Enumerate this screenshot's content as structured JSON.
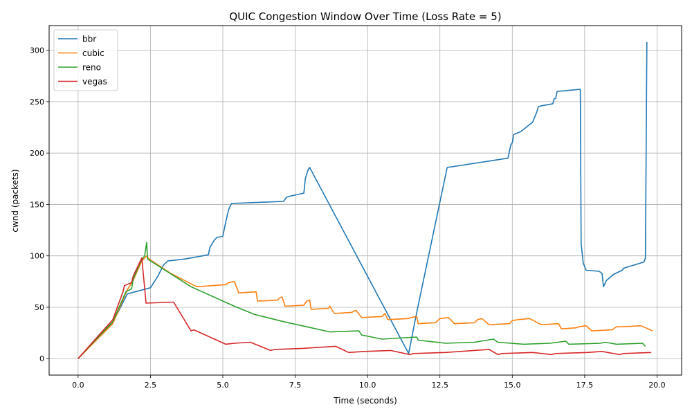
{
  "chart_data": {
    "type": "line",
    "title": "QUIC Congestion Window Over Time (Loss Rate = 5)",
    "xlabel": "Time (seconds)",
    "ylabel": "cwnd (packets)",
    "xlim": [
      -1.0,
      20.85
    ],
    "ylim": [
      -16,
      324
    ],
    "xticks": [
      0.0,
      2.5,
      5.0,
      7.5,
      10.0,
      12.5,
      15.0,
      17.5,
      20.0
    ],
    "xtick_labels": [
      "0.0",
      "2.5",
      "5.0",
      "7.5",
      "10.0",
      "12.5",
      "15.0",
      "17.5",
      "20.0"
    ],
    "yticks": [
      0,
      50,
      100,
      150,
      200,
      250,
      300
    ],
    "ytick_labels": [
      "0",
      "50",
      "100",
      "150",
      "200",
      "250",
      "300"
    ],
    "grid": true,
    "legend": "upper-left",
    "series": [
      {
        "name": "bbr",
        "color": "#1f77b4",
        "points": [
          [
            0,
            0
          ],
          [
            1.2,
            35
          ],
          [
            1.7,
            63
          ],
          [
            2.5,
            69
          ],
          [
            2.75,
            80
          ],
          [
            2.95,
            91
          ],
          [
            3.1,
            95
          ],
          [
            3.7,
            97
          ],
          [
            4.5,
            101
          ],
          [
            4.55,
            108
          ],
          [
            4.7,
            115
          ],
          [
            4.8,
            118
          ],
          [
            5.0,
            119
          ],
          [
            5.1,
            133
          ],
          [
            5.2,
            145
          ],
          [
            5.3,
            151
          ],
          [
            7.1,
            153
          ],
          [
            7.2,
            157
          ],
          [
            7.3,
            158
          ],
          [
            7.8,
            161
          ],
          [
            7.85,
            175
          ],
          [
            7.95,
            184
          ],
          [
            8.0,
            186
          ],
          [
            11.42,
            5
          ],
          [
            11.7,
            45
          ],
          [
            12.75,
            186
          ],
          [
            14.85,
            195
          ],
          [
            14.95,
            208
          ],
          [
            15.0,
            210
          ],
          [
            15.05,
            218
          ],
          [
            15.3,
            221
          ],
          [
            15.7,
            230
          ],
          [
            15.85,
            240
          ],
          [
            15.9,
            245
          ],
          [
            16.0,
            246
          ],
          [
            16.4,
            248
          ],
          [
            16.45,
            253
          ],
          [
            16.5,
            253
          ],
          [
            16.55,
            260
          ],
          [
            17.35,
            262
          ],
          [
            17.38,
            112
          ],
          [
            17.45,
            93
          ],
          [
            17.55,
            86
          ],
          [
            18.0,
            85
          ],
          [
            18.1,
            83
          ],
          [
            18.15,
            70
          ],
          [
            18.25,
            76
          ],
          [
            18.5,
            82
          ],
          [
            18.8,
            86
          ],
          [
            18.85,
            88
          ],
          [
            19.55,
            94
          ],
          [
            19.6,
            98
          ],
          [
            19.65,
            308
          ]
        ]
      },
      {
        "name": "cubic",
        "color": "#ff7f0e",
        "points": [
          [
            0,
            0
          ],
          [
            1.2,
            34
          ],
          [
            1.7,
            67
          ],
          [
            1.9,
            76
          ],
          [
            2.2,
            95
          ],
          [
            2.37,
            100
          ],
          [
            2.45,
            97
          ],
          [
            3.2,
            83
          ],
          [
            4.1,
            70
          ],
          [
            5.1,
            72
          ],
          [
            5.2,
            74
          ],
          [
            5.4,
            75
          ],
          [
            5.55,
            64
          ],
          [
            6.15,
            65
          ],
          [
            6.2,
            56
          ],
          [
            6.9,
            57
          ],
          [
            6.95,
            59
          ],
          [
            7.05,
            60
          ],
          [
            7.15,
            51
          ],
          [
            7.8,
            52
          ],
          [
            7.9,
            56
          ],
          [
            8.0,
            57
          ],
          [
            8.05,
            48
          ],
          [
            8.65,
            49
          ],
          [
            8.7,
            51
          ],
          [
            8.85,
            44
          ],
          [
            9.45,
            45
          ],
          [
            9.6,
            47
          ],
          [
            9.8,
            40
          ],
          [
            10.5,
            41
          ],
          [
            10.6,
            44
          ],
          [
            10.7,
            38
          ],
          [
            11.4,
            39
          ],
          [
            11.5,
            40
          ],
          [
            11.7,
            41
          ],
          [
            11.75,
            34
          ],
          [
            12.35,
            35
          ],
          [
            12.5,
            39
          ],
          [
            12.8,
            40
          ],
          [
            13.0,
            34
          ],
          [
            13.7,
            35
          ],
          [
            13.8,
            38
          ],
          [
            13.95,
            39
          ],
          [
            14.2,
            33
          ],
          [
            14.9,
            34
          ],
          [
            15.0,
            37
          ],
          [
            15.2,
            38
          ],
          [
            15.6,
            39
          ],
          [
            16.0,
            33
          ],
          [
            16.6,
            34
          ],
          [
            16.7,
            29
          ],
          [
            17.2,
            30
          ],
          [
            17.3,
            31
          ],
          [
            17.55,
            32
          ],
          [
            17.75,
            27
          ],
          [
            18.45,
            28
          ],
          [
            18.6,
            31
          ],
          [
            18.8,
            31
          ],
          [
            19.45,
            32
          ],
          [
            19.85,
            27
          ]
        ]
      },
      {
        "name": "reno",
        "color": "#2ca02c",
        "points": [
          [
            0,
            0
          ],
          [
            1.2,
            36
          ],
          [
            1.65,
            65
          ],
          [
            1.85,
            68
          ],
          [
            1.9,
            77
          ],
          [
            2.15,
            94
          ],
          [
            2.3,
            100
          ],
          [
            2.37,
            113
          ],
          [
            2.4,
            97
          ],
          [
            3.9,
            70
          ],
          [
            5.4,
            51
          ],
          [
            6.1,
            43
          ],
          [
            7.1,
            36
          ],
          [
            7.9,
            31
          ],
          [
            8.7,
            26
          ],
          [
            9.7,
            27
          ],
          [
            9.8,
            23
          ],
          [
            10.5,
            19
          ],
          [
            11.7,
            21
          ],
          [
            11.75,
            18
          ],
          [
            12.7,
            15
          ],
          [
            13.7,
            16
          ],
          [
            14.35,
            19
          ],
          [
            14.5,
            16
          ],
          [
            15.4,
            14
          ],
          [
            16.3,
            15
          ],
          [
            16.85,
            17
          ],
          [
            16.95,
            14
          ],
          [
            18.05,
            15
          ],
          [
            18.2,
            16
          ],
          [
            18.6,
            14
          ],
          [
            19.5,
            15
          ],
          [
            19.6,
            12
          ]
        ]
      },
      {
        "name": "vegas",
        "color": "#d62728",
        "points": [
          [
            0,
            0
          ],
          [
            1.2,
            38
          ],
          [
            1.55,
            65
          ],
          [
            1.6,
            71
          ],
          [
            1.85,
            74
          ],
          [
            1.9,
            80
          ],
          [
            2.2,
            98
          ],
          [
            2.35,
            54
          ],
          [
            3.3,
            55
          ],
          [
            3.9,
            27
          ],
          [
            4.0,
            28
          ],
          [
            5.1,
            14
          ],
          [
            5.4,
            15
          ],
          [
            5.95,
            16
          ],
          [
            6.65,
            8
          ],
          [
            6.8,
            9
          ],
          [
            7.75,
            10
          ],
          [
            8.9,
            12
          ],
          [
            9.35,
            6
          ],
          [
            9.9,
            7
          ],
          [
            10.8,
            8
          ],
          [
            11.45,
            4
          ],
          [
            11.6,
            5
          ],
          [
            12.7,
            6
          ],
          [
            14.2,
            9
          ],
          [
            14.5,
            4
          ],
          [
            14.65,
            5
          ],
          [
            15.7,
            6
          ],
          [
            16.35,
            4
          ],
          [
            16.5,
            5
          ],
          [
            17.6,
            6
          ],
          [
            18.1,
            7
          ],
          [
            18.7,
            4
          ],
          [
            18.85,
            5
          ],
          [
            19.8,
            6
          ]
        ]
      }
    ]
  }
}
